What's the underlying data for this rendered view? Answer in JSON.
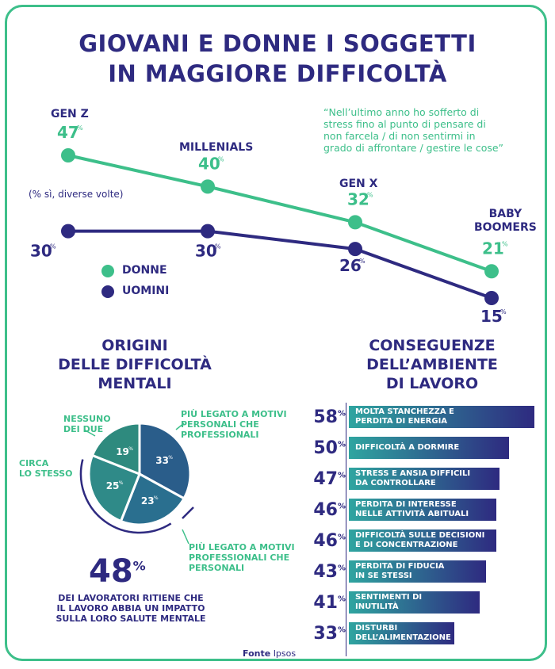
{
  "title_line1": "GIOVANI E DONNE I SOGGETTI",
  "title_line2": "IN MAGGIORE DIFFICOLTÀ",
  "quote_lines": [
    "“Nell’ultimo anno ho sofferto di",
    "stress fino al punto di pensare di",
    "non farcela / di non sentirmi in",
    "grado di affrontare / gestire le cose”"
  ],
  "note": "(% sì, diverse volte)",
  "legend": {
    "donne": "DONNE",
    "uomini": "UOMINI"
  },
  "colors": {
    "donne": "#3dbf8a",
    "uomini": "#2e2a80"
  },
  "chart_data": [
    {
      "type": "line",
      "categories": [
        "GEN Z",
        "MILLENIALS",
        "GEN X",
        "BABY BOOMERS"
      ],
      "series": [
        {
          "name": "DONNE",
          "values": [
            47,
            40,
            32,
            21
          ]
        },
        {
          "name": "UOMINI",
          "values": [
            30,
            30,
            26,
            15
          ]
        }
      ],
      "unit": "%"
    },
    {
      "type": "pie",
      "title": "ORIGINI DELLE DIFFICOLTÀ MENTALI",
      "slices": [
        {
          "label": "PIÙ LEGATO A MOTIVI PERSONALI CHE PROFESSIONALI",
          "value": 33
        },
        {
          "label": "PIÙ LEGATO A MOTIVI PROFESSIONALI CHE PERSONALI",
          "value": 23
        },
        {
          "label": "CIRCA LO STESSO",
          "value": 25
        },
        {
          "label": "NESSUNO DEI DUE",
          "value": 19
        }
      ],
      "unit": "%"
    },
    {
      "type": "bar",
      "title": "CONSEGUENZE DELL’AMBIENTE DI LAVORO",
      "orientation": "horizontal",
      "categories": [
        "MOLTA STANCHEZZA E PERDITA DI ENERGIA",
        "DIFFICOLTÀ A DORMIRE",
        "STRESS E ANSIA DIFFICILI DA CONTROLLARE",
        "PERDITA DI INTERESSE NELLE ATTIVITÀ ABITUALI",
        "DIFFICOLTÀ SULLE DECISIONI E DI CONCENTRAZIONE",
        "PERDITA DI FIDUCIA IN SE STESSI",
        "SENTIMENTI DI INUTILITÀ",
        "DISTURBI DELL’ALIMENTAZIONE"
      ],
      "values": [
        58,
        50,
        47,
        46,
        46,
        43,
        41,
        33
      ],
      "unit": "%"
    }
  ],
  "pie_title_lines": [
    "ORIGINI",
    "DELLE DIFFICOLTÀ",
    "MENTALI"
  ],
  "bars_title_lines": [
    "CONSEGUENZE",
    "DELL’AMBIENTE",
    "DI LAVORO"
  ],
  "gen_labels": {
    "genz": "GEN Z",
    "mill": "MILLENIALS",
    "genx": "GEN X",
    "baby1": "BABY",
    "baby2": "BOOMERS"
  },
  "pie_labels": {
    "personali": [
      "PIÙ LEGATO A MOTIVI",
      "PERSONALI CHE",
      "PROFESSIONALI"
    ],
    "professionali": [
      "PIÙ LEGATO A MOTIVI",
      "PROFESSIONALI CHE",
      "PERSONALI"
    ],
    "stesso": [
      "CIRCA",
      "LO STESSO"
    ],
    "nessuno": [
      "NESSUNO",
      "DEI DUE"
    ]
  },
  "bar_text_lines": [
    [
      "MOLTA STANCHEZZA E",
      "PERDITA DI ENERGIA"
    ],
    [
      "DIFFICOLTÀ A DORMIRE"
    ],
    [
      "STRESS E ANSIA DIFFICILI",
      "DA CONTROLLARE"
    ],
    [
      "PERDITA DI INTERESSE",
      "NELLE ATTIVITÀ ABITUALI"
    ],
    [
      "DIFFICOLTÀ SULLE DECISIONI",
      "E DI CONCENTRAZIONE"
    ],
    [
      "PERDITA DI FIDUCIA",
      "IN SE STESSI"
    ],
    [
      "SENTIMENTI DI",
      "INUTILITÀ"
    ],
    [
      "DISTURBI",
      "DELL’ALIMENTAZIONE"
    ]
  ],
  "stat48": {
    "value": "48",
    "unit": "%"
  },
  "stat48_caption": [
    "DEI LAVORATORI RITIENE CHE",
    "IL LAVORO ABBIA UN IMPATTO",
    "SULLA LORO SALUTE MENTALE"
  ],
  "fonte": {
    "label": "Fonte",
    "source": "Ipsos"
  }
}
